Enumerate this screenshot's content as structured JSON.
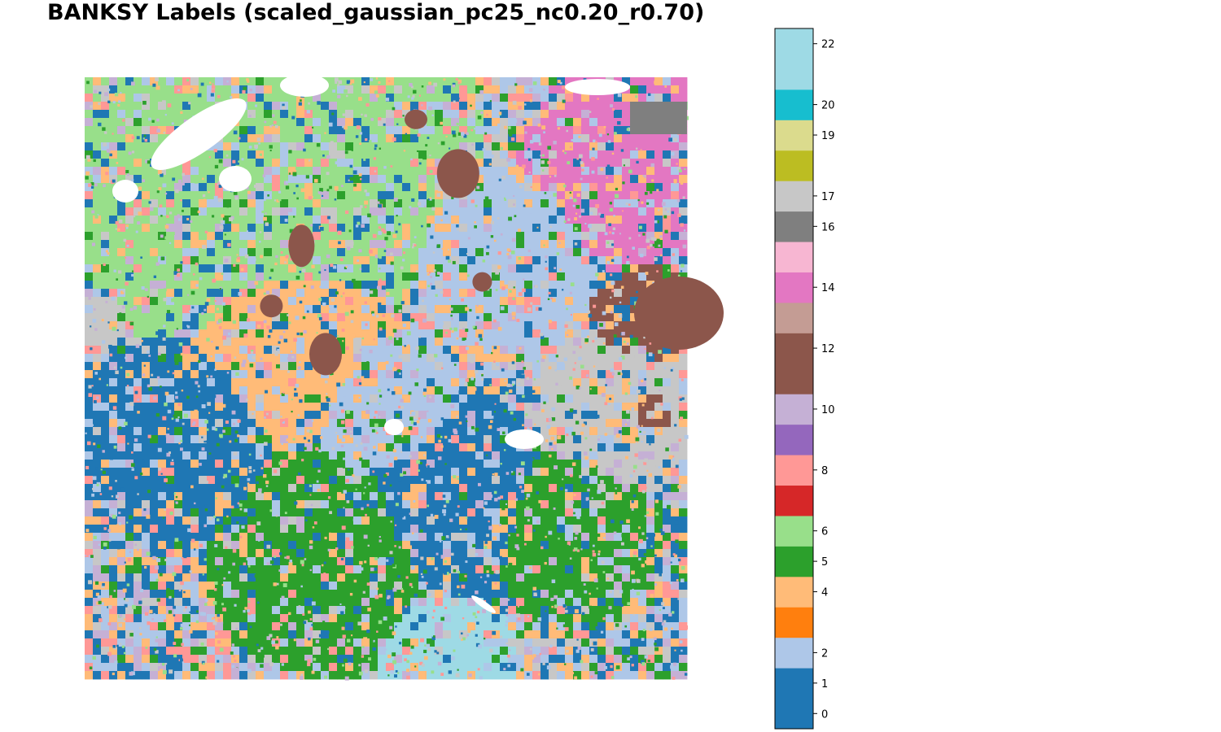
{
  "chart_data": {
    "type": "heatmap",
    "subtype": "spatial-cluster-scatter",
    "title": "BANKSY Labels (scaled_gaussian_pc25_nc0.20_r0.70)",
    "xlabel": "",
    "ylabel": "",
    "axes_visible": false,
    "grid": false,
    "colormap": "tab20",
    "colorbar": {
      "placement": "right",
      "vmin": -0.5,
      "vmax": 22.5,
      "tick_values": [
        0,
        1,
        2,
        4,
        5,
        6,
        8,
        10,
        12,
        14,
        16,
        17,
        19,
        20,
        22
      ],
      "tick_labels": [
        "0",
        "1",
        "2",
        "4",
        "5",
        "6",
        "8",
        "10",
        "12",
        "14",
        "16",
        "17",
        "19",
        "20",
        "22"
      ],
      "segments": [
        {
          "from": -0.5,
          "to": 1.5,
          "color": "#1f77b4"
        },
        {
          "from": 1.5,
          "to": 2.5,
          "color": "#aec7e8"
        },
        {
          "from": 2.5,
          "to": 3.5,
          "color": "#ff7f0e"
        },
        {
          "from": 3.5,
          "to": 4.5,
          "color": "#ffbb78"
        },
        {
          "from": 4.5,
          "to": 5.5,
          "color": "#2ca02c"
        },
        {
          "from": 5.5,
          "to": 6.5,
          "color": "#98df8a"
        },
        {
          "from": 6.5,
          "to": 7.5,
          "color": "#d62728"
        },
        {
          "from": 7.5,
          "to": 8.5,
          "color": "#ff9896"
        },
        {
          "from": 8.5,
          "to": 9.5,
          "color": "#9467bd"
        },
        {
          "from": 9.5,
          "to": 10.5,
          "color": "#c5b0d5"
        },
        {
          "from": 10.5,
          "to": 12.5,
          "color": "#8c564b"
        },
        {
          "from": 12.5,
          "to": 13.5,
          "color": "#c49c94"
        },
        {
          "from": 13.5,
          "to": 14.5,
          "color": "#e377c2"
        },
        {
          "from": 14.5,
          "to": 15.5,
          "color": "#f7b6d2"
        },
        {
          "from": 15.5,
          "to": 16.5,
          "color": "#7f7f7f"
        },
        {
          "from": 16.5,
          "to": 17.5,
          "color": "#c7c7c7"
        },
        {
          "from": 17.5,
          "to": 18.5,
          "color": "#bcbd22"
        },
        {
          "from": 18.5,
          "to": 19.5,
          "color": "#dbdb8d"
        },
        {
          "from": 19.5,
          "to": 20.5,
          "color": "#17becf"
        },
        {
          "from": 20.5,
          "to": 22.5,
          "color": "#9edae5"
        }
      ]
    },
    "cluster_colors": {
      "0": "#1f77b4",
      "2": "#aec7e8",
      "4": "#ffbb78",
      "5": "#2ca02c",
      "6": "#98df8a",
      "8": "#ff9896",
      "10": "#c5b0d5",
      "12": "#8c564b",
      "14": "#e377c2",
      "16": "#7f7f7f",
      "17": "#c7c7c7",
      "22": "#9edae5"
    }
  }
}
